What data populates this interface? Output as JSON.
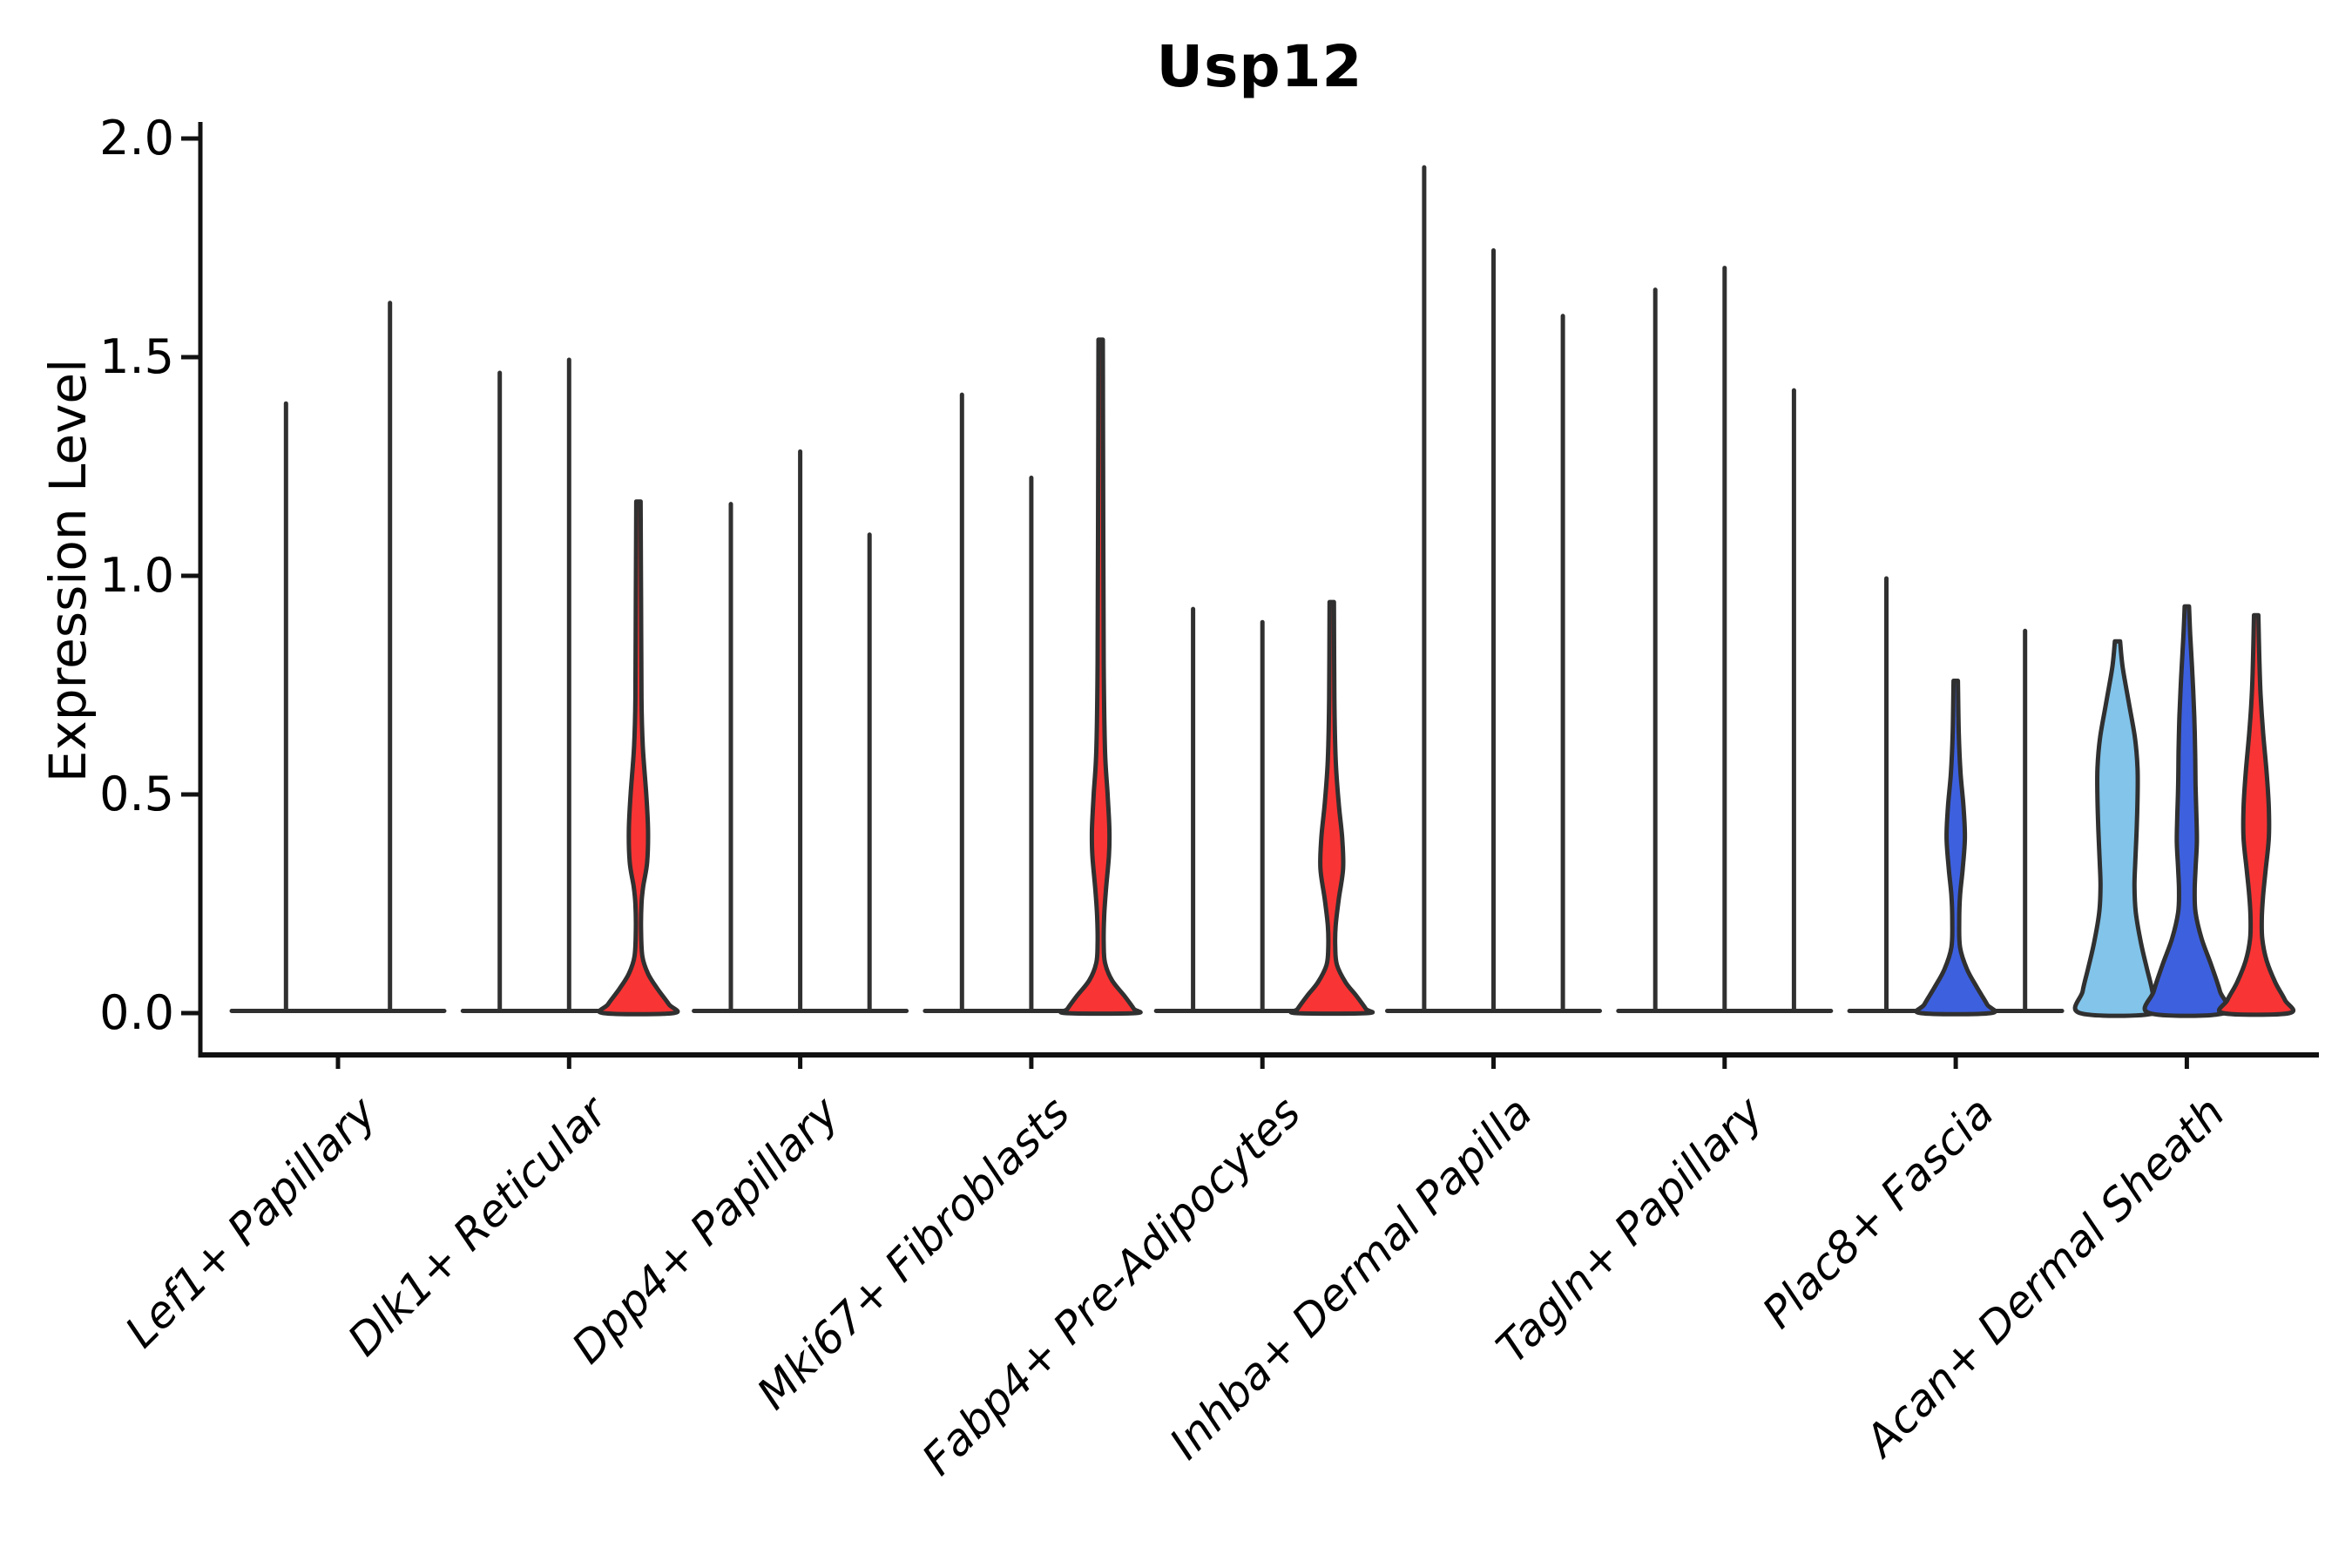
{
  "title": "Usp12",
  "axes": {
    "y_label": "Expression Level",
    "y_tick_labels": [
      "2.0",
      "1.5",
      "1.0",
      "0.5",
      "0.0"
    ]
  },
  "chart_data": {
    "type": "violin",
    "title": "Usp12",
    "xlabel": "",
    "ylabel": "Expression Level",
    "ylim": [
      0,
      2.0
    ],
    "y_ticks": [
      2.0,
      1.5,
      1.0,
      0.5,
      0.0
    ],
    "grid": false,
    "legend": "none",
    "colors": {
      "red": "#F93434",
      "blue": "#3D60DF",
      "lightblue": "#82C4EA",
      "outline": "#303030",
      "axis": "#111111"
    },
    "note": "Expression mostly near zero in all clusters; thin spikes show max expression. Profiles are [expression_value, half_width_px] density outlines.",
    "groups": [
      {
        "category": "Lef1+ Papillary",
        "violins": [
          {
            "shape": "spike",
            "max": 1.4
          },
          {
            "shape": "spike",
            "max": 1.63
          }
        ]
      },
      {
        "category": "Dlk1+ Reticular",
        "violins": [
          {
            "shape": "spike",
            "max": 1.47
          },
          {
            "shape": "spike",
            "max": 1.5
          },
          {
            "shape": "filled",
            "max": 1.17,
            "color_key": "red",
            "profile": [
              [
                1.17,
                2.5
              ],
              [
                0.95,
                3
              ],
              [
                0.72,
                3.5
              ],
              [
                0.61,
                5
              ],
              [
                0.5,
                9
              ],
              [
                0.42,
                11
              ],
              [
                0.345,
                10
              ],
              [
                0.29,
                5.5
              ],
              [
                0.25,
                3.5
              ],
              [
                0.19,
                3
              ],
              [
                0.13,
                4.5
              ],
              [
                0.09,
                11
              ],
              [
                0.055,
                22
              ],
              [
                0.02,
                35
              ],
              [
                0,
                40
              ]
            ]
          }
        ]
      },
      {
        "category": "Dpp4+ Papillary",
        "violins": [
          {
            "shape": "spike",
            "max": 1.17
          },
          {
            "shape": "spike",
            "max": 1.29
          },
          {
            "shape": "spike",
            "max": 1.1
          }
        ]
      },
      {
        "category": "Mki67+ Fibroblasts",
        "violins": [
          {
            "shape": "spike",
            "max": 1.42
          },
          {
            "shape": "spike",
            "max": 1.23
          },
          {
            "shape": "filled",
            "max": 1.54,
            "color_key": "red",
            "profile": [
              [
                1.54,
                2.5
              ],
              [
                1.1,
                3
              ],
              [
                0.8,
                3.5
              ],
              [
                0.6,
                5
              ],
              [
                0.5,
                8
              ],
              [
                0.42,
                10
              ],
              [
                0.36,
                9.5
              ],
              [
                0.28,
                6
              ],
              [
                0.22,
                4
              ],
              [
                0.16,
                3.5
              ],
              [
                0.115,
                5
              ],
              [
                0.075,
                13
              ],
              [
                0.04,
                27
              ],
              [
                0.01,
                38
              ],
              [
                0,
                40
              ]
            ]
          }
        ]
      },
      {
        "category": "Fabp4+ Pre-Adipocytes",
        "violins": [
          {
            "shape": "spike",
            "max": 0.93
          },
          {
            "shape": "spike",
            "max": 0.9
          },
          {
            "shape": "filled",
            "max": 0.94,
            "color_key": "red",
            "profile": [
              [
                0.94,
                2.5
              ],
              [
                0.72,
                3
              ],
              [
                0.58,
                4.5
              ],
              [
                0.48,
                8
              ],
              [
                0.4,
                12
              ],
              [
                0.33,
                13
              ],
              [
                0.26,
                8
              ],
              [
                0.2,
                4.5
              ],
              [
                0.15,
                4
              ],
              [
                0.11,
                6
              ],
              [
                0.07,
                16
              ],
              [
                0.04,
                28
              ],
              [
                0.01,
                39
              ],
              [
                0,
                41
              ]
            ]
          }
        ]
      },
      {
        "category": "Inhba+ Dermal Papilla",
        "violins": [
          {
            "shape": "spike",
            "max": 1.94
          },
          {
            "shape": "spike",
            "max": 1.75
          },
          {
            "shape": "spike",
            "max": 1.6
          }
        ]
      },
      {
        "category": "Tagln+ Papillary",
        "violins": [
          {
            "shape": "spike",
            "max": 1.66
          },
          {
            "shape": "spike",
            "max": 1.71
          },
          {
            "shape": "spike",
            "max": 1.43
          }
        ]
      },
      {
        "category": "Plac8+ Fascia",
        "violins": [
          {
            "shape": "spike",
            "max": 1.0
          },
          {
            "shape": "filled",
            "max": 0.76,
            "color_key": "blue",
            "profile": [
              [
                0.76,
                2.5
              ],
              [
                0.64,
                3.5
              ],
              [
                0.55,
                5.5
              ],
              [
                0.47,
                9
              ],
              [
                0.4,
                10.5
              ],
              [
                0.33,
                8
              ],
              [
                0.27,
                5
              ],
              [
                0.21,
                4
              ],
              [
                0.15,
                5
              ],
              [
                0.1,
                13
              ],
              [
                0.06,
                24
              ],
              [
                0.02,
                36
              ],
              [
                0,
                40
              ]
            ]
          },
          {
            "shape": "spike",
            "max": 0.88
          }
        ]
      },
      {
        "category": "Acan+ Dermal Sheath",
        "violins": [
          {
            "shape": "filled",
            "max": 0.85,
            "color_key": "lightblue",
            "profile": [
              [
                0.85,
                3
              ],
              [
                0.79,
                6
              ],
              [
                0.71,
                13
              ],
              [
                0.63,
                20
              ],
              [
                0.56,
                23
              ],
              [
                0.49,
                23
              ],
              [
                0.42,
                22
              ],
              [
                0.35,
                20.5
              ],
              [
                0.29,
                19.5
              ],
              [
                0.23,
                21
              ],
              [
                0.16,
                27
              ],
              [
                0.1,
                34
              ],
              [
                0.05,
                40
              ],
              [
                0,
                43
              ]
            ]
          },
          {
            "shape": "filled",
            "max": 0.93,
            "color_key": "blue",
            "profile": [
              [
                0.93,
                2.5
              ],
              [
                0.86,
                4
              ],
              [
                0.77,
                6.5
              ],
              [
                0.68,
                8.5
              ],
              [
                0.6,
                9.5
              ],
              [
                0.52,
                10
              ],
              [
                0.45,
                11
              ],
              [
                0.39,
                11.5
              ],
              [
                0.33,
                10
              ],
              [
                0.28,
                9
              ],
              [
                0.23,
                10
              ],
              [
                0.17,
                17
              ],
              [
                0.11,
                28
              ],
              [
                0.05,
                38
              ],
              [
                0,
                43
              ]
            ]
          },
          {
            "shape": "filled",
            "max": 0.91,
            "color_key": "red",
            "profile": [
              [
                0.91,
                2.5
              ],
              [
                0.82,
                3.5
              ],
              [
                0.73,
                5
              ],
              [
                0.64,
                8
              ],
              [
                0.55,
                12
              ],
              [
                0.47,
                14.5
              ],
              [
                0.4,
                14.5
              ],
              [
                0.33,
                11
              ],
              [
                0.27,
                8
              ],
              [
                0.22,
                6.5
              ],
              [
                0.17,
                7
              ],
              [
                0.12,
                12
              ],
              [
                0.07,
                22
              ],
              [
                0.03,
                33
              ],
              [
                0,
                38
              ]
            ]
          }
        ]
      }
    ]
  }
}
